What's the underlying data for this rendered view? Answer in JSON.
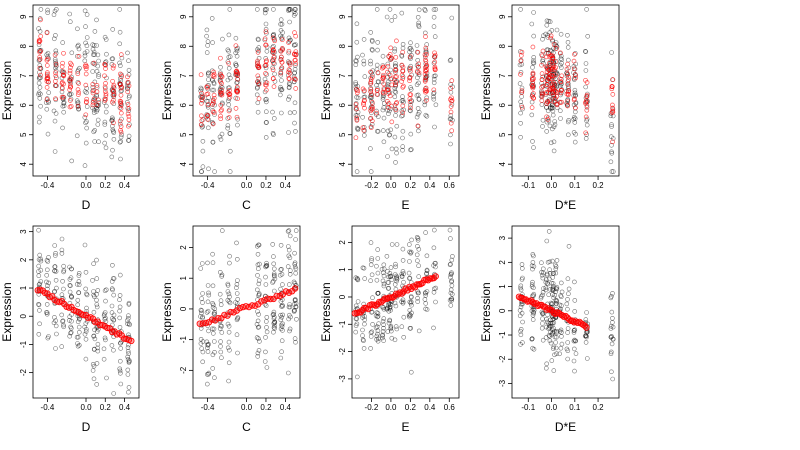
{
  "chart_data": [
    {
      "type": "scatter",
      "xlabel": "D",
      "ylabel": "Expression",
      "xlim": [
        -0.55,
        0.55
      ],
      "ylim": [
        3.6,
        9.4
      ],
      "xticks": [
        "-0.4",
        "0.0",
        "0.2",
        "0.4"
      ],
      "xtick_values": [
        -0.4,
        0.0,
        0.2,
        0.4
      ],
      "yticks": [
        "4",
        "5",
        "6",
        "7",
        "8",
        "9"
      ],
      "ytick_values": [
        4,
        5,
        6,
        7,
        8,
        9
      ],
      "x_groups": [
        -0.48,
        -0.4,
        -0.32,
        -0.24,
        -0.16,
        -0.08,
        0.0,
        0.08,
        0.12,
        0.2,
        0.28,
        0.36,
        0.44
      ],
      "black_series": {
        "mean": [
          7.2,
          7.1,
          7.0,
          6.9,
          6.8,
          6.8,
          6.7,
          6.7,
          6.6,
          6.5,
          6.4,
          6.3,
          6.2
        ],
        "spread": 1.1,
        "count": 260
      },
      "red_series": {
        "mean": [
          7.6,
          7.3,
          7.1,
          7.0,
          6.9,
          6.8,
          6.7,
          6.6,
          6.6,
          6.5,
          6.4,
          6.3,
          6.3
        ],
        "spread": 0.55,
        "count": 140,
        "color": "#ff0000"
      }
    },
    {
      "type": "scatter",
      "xlabel": "C",
      "ylabel": "Expression",
      "xlim": [
        -0.55,
        0.55
      ],
      "ylim": [
        3.6,
        9.4
      ],
      "xticks": [
        "-0.4",
        "0.0",
        "0.2",
        "0.4"
      ],
      "xtick_values": [
        -0.4,
        0.0,
        0.2,
        0.4
      ],
      "yticks": [
        "4",
        "5",
        "6",
        "7",
        "8",
        "9"
      ],
      "ytick_values": [
        4,
        5,
        6,
        7,
        8,
        9
      ],
      "x_groups": [
        -0.46,
        -0.4,
        -0.34,
        -0.26,
        -0.18,
        -0.1,
        0.12,
        0.2,
        0.28,
        0.36,
        0.44,
        0.5
      ],
      "black_series": {
        "mean": [
          6.2,
          6.2,
          6.3,
          6.4,
          6.5,
          6.6,
          7.0,
          7.1,
          7.2,
          7.3,
          7.3,
          7.4
        ],
        "spread": 1.1,
        "count": 260
      },
      "red_series": {
        "mean": [
          6.1,
          6.3,
          6.4,
          6.5,
          6.6,
          6.7,
          7.3,
          7.4,
          7.5,
          7.4,
          7.5,
          7.6
        ],
        "spread": 0.5,
        "count": 140,
        "color": "#ff0000"
      }
    },
    {
      "type": "scatter",
      "xlabel": "E",
      "ylabel": "Expression",
      "xlim": [
        -0.4,
        0.7
      ],
      "ylim": [
        3.6,
        9.4
      ],
      "xticks": [
        "-0.2",
        "0.0",
        "0.2",
        "0.4",
        "0.6"
      ],
      "xtick_values": [
        -0.2,
        0.0,
        0.2,
        0.4,
        0.6
      ],
      "yticks": [
        "4",
        "5",
        "6",
        "7",
        "8",
        "9"
      ],
      "ytick_values": [
        4,
        5,
        6,
        7,
        8,
        9
      ],
      "x_groups": [
        -0.35,
        -0.28,
        -0.2,
        -0.14,
        -0.08,
        -0.03,
        0.0,
        0.05,
        0.12,
        0.2,
        0.28,
        0.36,
        0.45,
        0.62
      ],
      "black_series": {
        "mean": [
          6.3,
          6.4,
          6.5,
          6.5,
          6.6,
          6.6,
          6.7,
          6.7,
          6.8,
          6.9,
          7.0,
          7.1,
          7.2,
          6.5
        ],
        "spread": 1.1,
        "count": 270
      },
      "red_series": {
        "mean": [
          6.0,
          6.2,
          6.4,
          6.5,
          6.6,
          6.7,
          6.8,
          6.9,
          6.9,
          7.0,
          7.1,
          7.2,
          7.4,
          6.0
        ],
        "spread": 0.55,
        "count": 150,
        "color": "#ff0000"
      }
    },
    {
      "type": "scatter",
      "xlabel": "D*E",
      "ylabel": "Expression",
      "xlim": [
        -0.17,
        0.29
      ],
      "ylim": [
        3.6,
        9.4
      ],
      "xticks": [
        "-0.1",
        "0.0",
        "0.1",
        "0.2"
      ],
      "xtick_values": [
        -0.1,
        0.0,
        0.1,
        0.2
      ],
      "yticks": [
        "4",
        "5",
        "6",
        "7",
        "8",
        "9"
      ],
      "ytick_values": [
        4,
        5,
        6,
        7,
        8,
        9
      ],
      "x_groups": [
        -0.13,
        -0.08,
        -0.04,
        -0.02,
        -0.01,
        0.0,
        0.005,
        0.01,
        0.02,
        0.04,
        0.07,
        0.1,
        0.15,
        0.26
      ],
      "black_series": {
        "mean": [
          7.0,
          6.9,
          6.8,
          6.8,
          6.8,
          6.8,
          6.8,
          6.8,
          6.8,
          6.7,
          6.7,
          6.6,
          6.6,
          5.8
        ],
        "spread": 1.0,
        "count": 280
      },
      "red_series": {
        "mean": [
          6.8,
          6.7,
          6.7,
          6.8,
          6.9,
          7.0,
          6.9,
          6.9,
          6.8,
          6.7,
          6.6,
          6.5,
          6.3,
          6.1
        ],
        "spread": 0.55,
        "count": 160,
        "color": "#ff0000"
      }
    },
    {
      "type": "scatter",
      "xlabel": "D",
      "ylabel": "Expression",
      "xlim": [
        -0.55,
        0.55
      ],
      "ylim": [
        -2.9,
        3.2
      ],
      "xticks": [
        "-0.4",
        "0.0",
        "0.2",
        "0.4"
      ],
      "xtick_values": [
        -0.4,
        0.0,
        0.2,
        0.4
      ],
      "yticks": [
        "-2",
        "-1",
        "0",
        "1",
        "2",
        "3"
      ],
      "ytick_values": [
        -2,
        -1,
        0,
        1,
        2,
        3
      ],
      "x_groups": [
        -0.48,
        -0.4,
        -0.32,
        -0.24,
        -0.16,
        -0.08,
        0.0,
        0.08,
        0.12,
        0.2,
        0.28,
        0.36,
        0.44
      ],
      "black_series": {
        "mean": [
          0.95,
          0.8,
          0.6,
          0.45,
          0.3,
          0.15,
          0.0,
          -0.15,
          -0.2,
          -0.35,
          -0.5,
          -0.65,
          -0.8
        ],
        "spread": 1.0,
        "count": 260
      },
      "red_series": {
        "slope": -1.9,
        "intercept": 0.0,
        "x_from": -0.5,
        "x_to": 0.47,
        "count": 40,
        "color": "#ff0000"
      }
    },
    {
      "type": "scatter",
      "xlabel": "C",
      "ylabel": "Expression",
      "xlim": [
        -0.55,
        0.55
      ],
      "ylim": [
        -2.9,
        2.7
      ],
      "xticks": [
        "-0.4",
        "0.0",
        "0.2",
        "0.4"
      ],
      "xtick_values": [
        -0.4,
        0.0,
        0.2,
        0.4
      ],
      "yticks": [
        "-2",
        "-1",
        "0",
        "1",
        "2"
      ],
      "ytick_values": [
        -2,
        -1,
        0,
        1,
        2
      ],
      "x_groups": [
        -0.46,
        -0.4,
        -0.34,
        -0.26,
        -0.18,
        -0.1,
        0.12,
        0.2,
        0.28,
        0.36,
        0.44,
        0.5
      ],
      "black_series": {
        "mean": [
          -0.5,
          -0.45,
          -0.35,
          -0.25,
          -0.15,
          -0.05,
          0.15,
          0.25,
          0.35,
          0.45,
          0.55,
          0.6
        ],
        "spread": 1.0,
        "count": 260
      },
      "red_series": {
        "slope": 1.15,
        "intercept": 0.05,
        "x_from": -0.48,
        "x_to": 0.5,
        "count": 32,
        "color": "#ff0000"
      }
    },
    {
      "type": "scatter",
      "xlabel": "E",
      "ylabel": "Expression",
      "xlim": [
        -0.4,
        0.7
      ],
      "ylim": [
        -3.7,
        2.6
      ],
      "xticks": [
        "-0.2",
        "0.0",
        "0.2",
        "0.4",
        "0.6"
      ],
      "xtick_values": [
        -0.2,
        0.0,
        0.2,
        0.4,
        0.6
      ],
      "yticks": [
        "-3",
        "-2",
        "-1",
        "0",
        "1",
        "2"
      ],
      "ytick_values": [
        -3,
        -2,
        -1,
        0,
        1,
        2
      ],
      "x_groups": [
        -0.35,
        -0.28,
        -0.2,
        -0.14,
        -0.08,
        -0.03,
        0.0,
        0.05,
        0.12,
        0.2,
        0.28,
        0.36,
        0.45,
        0.62
      ],
      "black_series": {
        "mean": [
          -0.6,
          -0.5,
          -0.4,
          -0.3,
          -0.2,
          -0.1,
          0.0,
          0.05,
          0.15,
          0.25,
          0.4,
          0.5,
          0.7,
          0.9
        ],
        "spread": 1.0,
        "count": 270
      },
      "red_series": {
        "slope": 1.65,
        "intercept": 0.0,
        "x_from": -0.37,
        "x_to": 0.46,
        "count": 44,
        "color": "#ff0000"
      }
    },
    {
      "type": "scatter",
      "xlabel": "D*E",
      "ylabel": "Expression",
      "xlim": [
        -0.17,
        0.29
      ],
      "ylim": [
        -3.6,
        3.5
      ],
      "xticks": [
        "-0.1",
        "0.0",
        "0.1",
        "0.2"
      ],
      "xtick_values": [
        -0.1,
        0.0,
        0.1,
        0.2
      ],
      "yticks": [
        "-3",
        "-2",
        "-1",
        "0",
        "1",
        "2",
        "3"
      ],
      "ytick_values": [
        -3,
        -2,
        -1,
        0,
        1,
        2,
        3
      ],
      "x_groups": [
        -0.13,
        -0.08,
        -0.04,
        -0.02,
        -0.01,
        0.0,
        0.005,
        0.01,
        0.02,
        0.04,
        0.07,
        0.1,
        0.15,
        0.26
      ],
      "black_series": {
        "mean": [
          0.6,
          0.45,
          0.25,
          0.15,
          0.1,
          0.0,
          0.0,
          -0.05,
          -0.1,
          -0.2,
          -0.3,
          -0.45,
          -0.6,
          -1.0
        ],
        "spread": 1.0,
        "count": 280
      },
      "red_series": {
        "slope": -4.3,
        "intercept": 0.0,
        "x_from": -0.14,
        "x_to": 0.15,
        "count": 40,
        "color": "#ff0000"
      }
    }
  ]
}
